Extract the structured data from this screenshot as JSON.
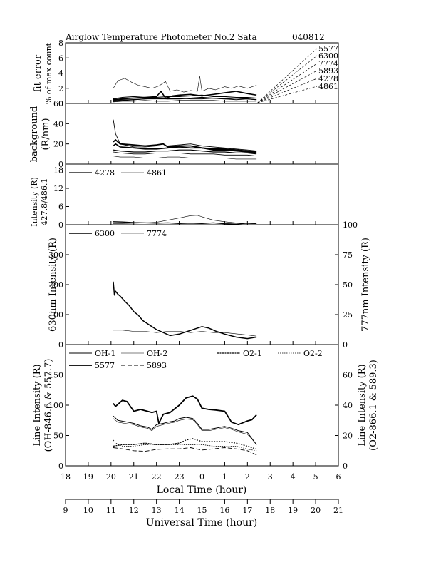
{
  "header": {
    "title": "Airglow Temperature Photometer No.2  Sata",
    "date": "040812"
  },
  "axes": {
    "local_time_label": "Local Time (hour)",
    "universal_time_label": "Universal Time (hour)",
    "local_ticks": [
      "18",
      "19",
      "20",
      "21",
      "22",
      "23",
      "0",
      "1",
      "2",
      "3",
      "4",
      "5",
      "6"
    ],
    "universal_ticks": [
      "9",
      "10",
      "11",
      "12",
      "13",
      "14",
      "15",
      "16",
      "17",
      "18",
      "19",
      "20",
      "21"
    ]
  },
  "chart_data": [
    {
      "type": "line",
      "panel": "fit-error",
      "ylabel": [
        "fit error",
        "% of max count"
      ],
      "ylim": [
        0,
        8
      ],
      "yticks": [
        "0",
        "2",
        "4",
        "6",
        "8"
      ],
      "x_unit": "UT hour",
      "annotations": [
        "5577",
        "6300",
        "7774",
        "5893",
        "4278",
        "4861"
      ],
      "series": [
        {
          "name": "5577",
          "x": [
            11.1,
            11.5,
            12,
            12.5,
            13,
            13.2,
            13.4,
            13.7,
            14,
            14.5,
            15,
            15.5,
            16,
            16.5,
            17,
            17.4
          ],
          "y": [
            0.5,
            0.6,
            0.7,
            0.8,
            0.9,
            1.6,
            0.7,
            1.0,
            1.1,
            1.2,
            1.0,
            1.2,
            1.4,
            1.6,
            1.3,
            1.1
          ]
        },
        {
          "name": "6300",
          "x": [
            11.1,
            11.5,
            12,
            12.5,
            13,
            13.5,
            14,
            14.5,
            15,
            15.5,
            16,
            16.5,
            17,
            17.4
          ],
          "y": [
            0.3,
            0.4,
            0.5,
            0.6,
            0.7,
            0.6,
            0.6,
            0.7,
            0.8,
            0.7,
            0.6,
            0.7,
            0.6,
            0.5
          ]
        },
        {
          "name": "7774",
          "x": [
            11.1,
            11.5,
            12,
            12.5,
            13,
            13.5,
            14,
            14.5,
            15,
            15.5,
            16,
            16.5,
            17,
            17.4
          ],
          "y": [
            0.6,
            0.8,
            0.9,
            0.8,
            0.8,
            0.9,
            0.9,
            1.0,
            1.1,
            0.9,
            0.9,
            0.8,
            0.8,
            0.7
          ]
        },
        {
          "name": "5893",
          "x": [
            11.1,
            11.5,
            12,
            12.5,
            13,
            13.5,
            14,
            14.5,
            15,
            15.5,
            16,
            16.5,
            17,
            17.4
          ],
          "y": [
            0.2,
            0.3,
            0.3,
            0.4,
            0.3,
            0.3,
            0.4,
            0.4,
            0.4,
            0.4,
            0.3,
            0.3,
            0.3,
            0.3
          ]
        },
        {
          "name": "4278",
          "x": [
            11.1,
            11.5,
            12,
            12.5,
            13,
            13.5,
            14,
            14.5,
            15,
            15.5,
            16,
            16.5,
            17,
            17.4
          ],
          "y": [
            0.4,
            0.5,
            0.5,
            0.6,
            0.6,
            0.6,
            0.7,
            0.6,
            0.6,
            0.7,
            0.6,
            0.5,
            0.6,
            0.5
          ]
        },
        {
          "name": "4861",
          "x": [
            11.1,
            11.3,
            11.6,
            11.9,
            12.2,
            12.5,
            12.8,
            13.1,
            13.4,
            13.6,
            13.9,
            14.2,
            14.5,
            14.8,
            14.9,
            15.0,
            15.3,
            15.6,
            16,
            16.3,
            16.6,
            17,
            17.4
          ],
          "y": [
            2.0,
            3.0,
            3.3,
            2.8,
            2.4,
            2.2,
            2.0,
            2.3,
            2.9,
            1.6,
            1.8,
            1.5,
            1.7,
            1.6,
            3.6,
            1.6,
            2.0,
            1.8,
            2.2,
            2.0,
            2.3,
            2.0,
            2.4
          ]
        }
      ]
    },
    {
      "type": "line",
      "panel": "background",
      "ylabel": [
        "background",
        "(R/nm)"
      ],
      "ylim": [
        0,
        60
      ],
      "yticks": [
        "0",
        "20",
        "40",
        "60"
      ],
      "x_unit": "UT hour",
      "series": [
        {
          "x": [
            11.1,
            11.2,
            11.4,
            12,
            12.5,
            13,
            13.3,
            13.5,
            14,
            14.5,
            15,
            15.5,
            16,
            16.5,
            17,
            17.4
          ],
          "y": [
            22,
            24,
            20,
            19,
            18,
            19,
            20,
            17,
            18,
            18,
            16,
            15,
            15,
            14,
            13,
            12
          ]
        },
        {
          "x": [
            11.1,
            11.2,
            11.4,
            12,
            12.5,
            13,
            13.5,
            14,
            14.5,
            15,
            15.5,
            16,
            16.5,
            17,
            17.4
          ],
          "y": [
            44,
            30,
            20,
            17,
            17,
            18,
            18,
            19,
            20,
            18,
            17,
            16,
            15,
            14,
            13
          ]
        },
        {
          "x": [
            11.1,
            11.2,
            11.4,
            12,
            12.5,
            13,
            13.5,
            14,
            14.5,
            15,
            15.5,
            16,
            16.5,
            17,
            17.4
          ],
          "y": [
            18,
            20,
            17,
            16,
            15,
            15,
            16,
            17,
            16,
            16,
            14,
            14,
            13,
            12,
            11
          ]
        },
        {
          "x": [
            11.1,
            11.4,
            12,
            12.5,
            13,
            13.5,
            14,
            14.5,
            15,
            15.5,
            16,
            16.5,
            17,
            17.4
          ],
          "y": [
            14,
            13,
            12,
            12,
            13,
            13,
            14,
            14,
            13,
            12,
            12,
            11,
            11,
            10
          ]
        },
        {
          "x": [
            11.1,
            11.4,
            12,
            12.5,
            13,
            13.5,
            14,
            14.5,
            15,
            15.5,
            16,
            16.5,
            17,
            17.4
          ],
          "y": [
            12,
            11,
            10,
            10,
            11,
            11,
            11,
            10,
            10,
            10,
            9,
            9,
            9,
            8
          ]
        },
        {
          "x": [
            11.1,
            11.4,
            12,
            12.5,
            13,
            13.5,
            14,
            14.5,
            15,
            15.5,
            16,
            16.5,
            17,
            17.4
          ],
          "y": [
            8,
            7,
            7,
            6,
            6,
            7,
            7,
            6,
            6,
            6,
            6,
            5,
            5,
            5
          ]
        }
      ]
    },
    {
      "type": "line",
      "panel": "blue-lines",
      "ylabel": [
        "Intensity (R)",
        "427.8/486.1"
      ],
      "ylim": [
        0,
        20
      ],
      "yticks": [
        "0",
        "6",
        "12",
        "18"
      ],
      "x_unit": "UT hour",
      "series": [
        {
          "name": "4278",
          "x": [
            11.1,
            11.5,
            12,
            12.5,
            13,
            13.5,
            14,
            14.5,
            15,
            15.5,
            16,
            16.5,
            17,
            17.4
          ],
          "y": [
            1.0,
            0.9,
            0.7,
            0.6,
            0.5,
            0.6,
            0.4,
            0.5,
            0.4,
            0.6,
            0.3,
            0.2,
            0.5,
            0.4
          ]
        },
        {
          "name": "4861",
          "x": [
            11.1,
            11.5,
            12,
            12.5,
            13,
            13.5,
            14,
            14.5,
            14.8,
            15,
            15.5,
            16,
            16.5,
            17,
            17.4
          ],
          "y": [
            0.3,
            0.4,
            0.5,
            0.6,
            0.8,
            1.5,
            2.2,
            3.0,
            3.1,
            2.6,
            1.5,
            1.0,
            0.6,
            0.4,
            0.3
          ]
        }
      ]
    },
    {
      "type": "line",
      "panel": "red-lines",
      "ylabel": "630nm Intensity (R)",
      "y2label": "777nm Intensity (R)",
      "ylim": [
        0,
        400
      ],
      "yticks": [
        "0",
        "100",
        "200",
        "300"
      ],
      "y2lim": [
        0,
        100
      ],
      "y2ticks": [
        "0",
        "25",
        "50",
        "75",
        "100"
      ],
      "x_unit": "UT hour",
      "series": [
        {
          "name": "6300",
          "axis": "left",
          "x": [
            11.1,
            11.15,
            11.2,
            11.3,
            11.4,
            11.6,
            11.8,
            12.0,
            12.2,
            12.4,
            12.7,
            13.0,
            13.3,
            13.6,
            14.0,
            14.4,
            14.8,
            15.0,
            15.3,
            15.6,
            16.0,
            16.5,
            17.0,
            17.4
          ],
          "y": [
            210,
            165,
            178,
            168,
            162,
            145,
            130,
            110,
            98,
            80,
            65,
            50,
            40,
            30,
            35,
            45,
            55,
            60,
            55,
            45,
            35,
            25,
            20,
            25
          ]
        },
        {
          "name": "7774",
          "axis": "right",
          "x": [
            11.1,
            11.5,
            12,
            12.5,
            13,
            13.5,
            14,
            14.5,
            15,
            15.5,
            16,
            16.5,
            17,
            17.4
          ],
          "y": [
            12,
            12,
            11,
            11,
            10,
            11,
            11,
            10,
            11,
            10,
            10,
            9,
            8,
            7
          ]
        }
      ]
    },
    {
      "type": "line",
      "panel": "oh-o2",
      "ylabel": [
        "Line Intensity (R)",
        "(OH-846.6 & 557.7)"
      ],
      "y2label": [
        "Line Intensity (R)",
        "(O2-866.1 & 589.3)"
      ],
      "ylim": [
        0,
        200
      ],
      "yticks": [
        "0",
        "50",
        "100",
        "150"
      ],
      "y2lim": [
        0,
        80
      ],
      "y2ticks": [
        "0",
        "20",
        "40",
        "60"
      ],
      "x_unit": "UT hour",
      "series": [
        {
          "name": "OH-1",
          "axis": "left",
          "x": [
            11.1,
            11.3,
            11.6,
            12,
            12.3,
            12.6,
            12.8,
            13.0,
            13.3,
            13.5,
            13.8,
            14.0,
            14.3,
            14.6,
            14.8,
            15.0,
            15.3,
            15.6,
            16.0,
            16.3,
            16.6,
            17.0,
            17.2,
            17.4
          ],
          "y": [
            82,
            75,
            73,
            70,
            66,
            64,
            60,
            68,
            70,
            72,
            74,
            78,
            80,
            78,
            70,
            60,
            60,
            62,
            65,
            62,
            58,
            55,
            45,
            35
          ]
        },
        {
          "name": "OH-2",
          "axis": "left",
          "x": [
            11.1,
            11.3,
            11.6,
            12,
            12.3,
            12.6,
            12.8,
            13.0,
            13.3,
            13.5,
            13.8,
            14.0,
            14.3,
            14.6,
            14.8,
            15.0,
            15.3,
            15.6,
            16.0,
            16.3,
            16.6,
            17.0,
            17.2,
            17.4
          ],
          "y": [
            78,
            72,
            70,
            68,
            64,
            62,
            58,
            65,
            68,
            70,
            72,
            75,
            77,
            76,
            68,
            58,
            58,
            60,
            63,
            60,
            56,
            52,
            44,
            35
          ]
        },
        {
          "name": "5577",
          "axis": "left",
          "x": [
            11.1,
            11.2,
            11.5,
            11.7,
            12,
            12.3,
            12.6,
            12.8,
            13.0,
            13.1,
            13.3,
            13.6,
            14.0,
            14.3,
            14.6,
            14.8,
            15.0,
            15.3,
            15.6,
            16.0,
            16.3,
            16.6,
            17.0,
            17.2,
            17.4
          ],
          "y": [
            103,
            98,
            108,
            106,
            90,
            93,
            90,
            88,
            90,
            70,
            85,
            88,
            100,
            112,
            115,
            110,
            95,
            93,
            92,
            90,
            72,
            68,
            74,
            76,
            84
          ]
        },
        {
          "name": "5893",
          "axis": "left",
          "x": [
            11.1,
            11.5,
            12,
            12.5,
            13,
            13.5,
            14,
            14.5,
            15,
            15.5,
            16,
            16.5,
            17,
            17.4
          ],
          "y": [
            30,
            28,
            25,
            24,
            27,
            28,
            28,
            30,
            26,
            28,
            30,
            28,
            25,
            18
          ]
        },
        {
          "name": "O2-1",
          "axis": "right",
          "x": [
            11.1,
            11.5,
            12,
            12.5,
            13,
            13.5,
            14,
            14.3,
            14.6,
            15,
            15.5,
            16,
            16.5,
            17,
            17.4
          ],
          "y": [
            13,
            14,
            14,
            15,
            14,
            14,
            15,
            17,
            18,
            16,
            16,
            16,
            15,
            13,
            11
          ]
        },
        {
          "name": "O2-2",
          "axis": "right",
          "x": [
            11.1,
            11.2,
            11.5,
            12,
            12.5,
            13,
            13.5,
            14,
            14.5,
            15,
            15.5,
            16,
            16.5,
            17,
            17.4
          ],
          "y": [
            17,
            15,
            13,
            13,
            14,
            14,
            14,
            14,
            14,
            14,
            13,
            13,
            13,
            11,
            10
          ]
        }
      ]
    }
  ]
}
